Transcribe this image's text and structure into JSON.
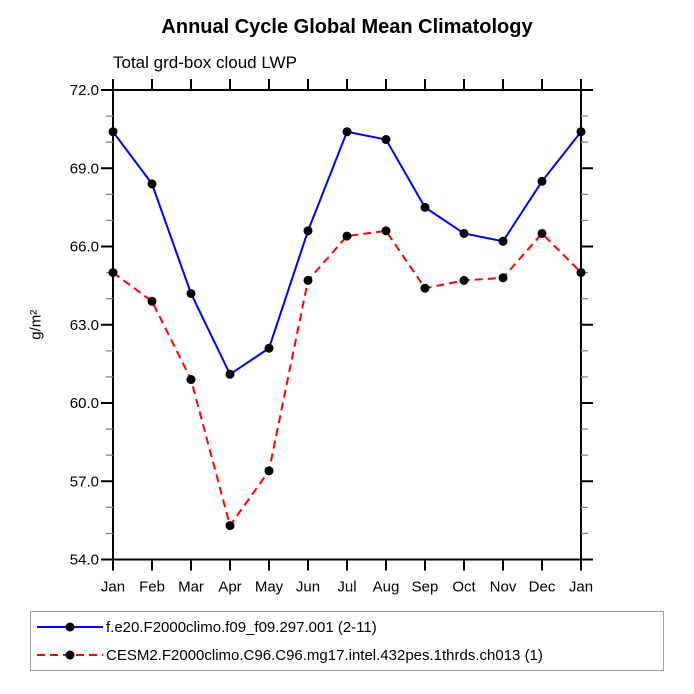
{
  "chart": {
    "title": "Annual Cycle Global Mean Climatology",
    "subtitle": "Total grd-box cloud LWP"
  },
  "chart_data": {
    "type": "line",
    "x_categories": [
      "Jan",
      "Feb",
      "Mar",
      "Apr",
      "May",
      "Jun",
      "Jul",
      "Aug",
      "Sep",
      "Oct",
      "Nov",
      "Dec",
      "Jan"
    ],
    "title": "Annual Cycle Global Mean Climatology",
    "subtitle": "Total grd-box cloud LWP",
    "xlabel": "",
    "ylabel": "g/m²",
    "ylim": [
      54.0,
      72.0
    ],
    "ytick_interval": 3.0,
    "yminor_tick_interval": 1.0,
    "ytick_labels": [
      "54.0",
      "57.0",
      "60.0",
      "63.0",
      "66.0",
      "69.0",
      "72.0"
    ],
    "grid": false,
    "legend_position": "bottom-left",
    "frame_color": "#000000",
    "marker": "filled-circle",
    "marker_color": "#000000",
    "series": [
      {
        "name": "f.e20.F2000climo.f09_f09.297.001 (2-11)",
        "color": "#0000ff",
        "line_style": "solid",
        "values": [
          70.4,
          68.4,
          64.2,
          61.1,
          62.1,
          66.6,
          70.4,
          70.1,
          67.5,
          66.5,
          66.2,
          68.5,
          70.4
        ]
      },
      {
        "name": "CESM2.F2000climo.C96.C96.mg17.intel.432pes.1thrds.ch013 (1)",
        "color": "#ff0000",
        "line_style": "dashed",
        "values": [
          65.0,
          63.9,
          60.9,
          55.3,
          57.4,
          64.7,
          66.4,
          66.6,
          64.4,
          64.7,
          64.8,
          66.5,
          65.0
        ]
      }
    ]
  }
}
